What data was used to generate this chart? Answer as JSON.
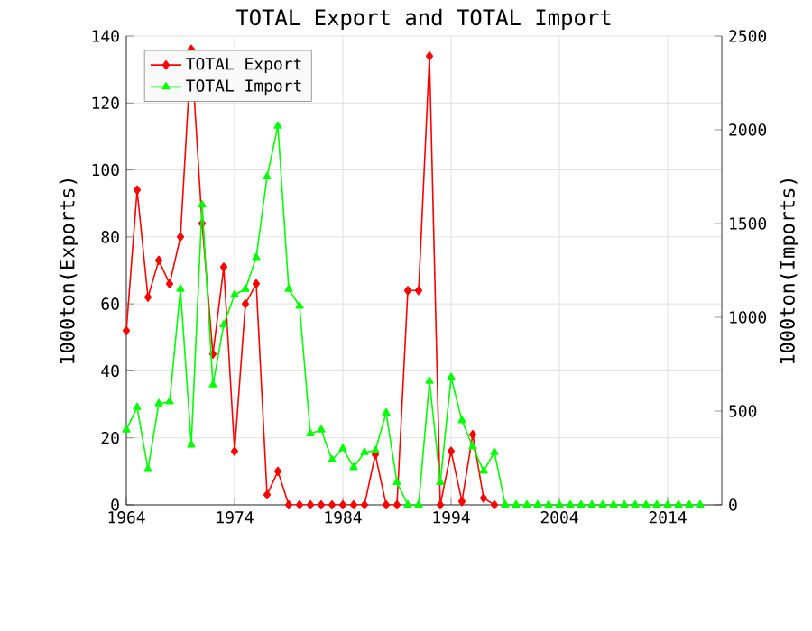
{
  "chart_data": {
    "type": "line",
    "title": "TOTAL Export and TOTAL Import",
    "ylabel": "1000ton(Exports)",
    "y2label": "1000ton(Imports)",
    "x": [
      1964,
      1965,
      1966,
      1967,
      1968,
      1969,
      1970,
      1971,
      1972,
      1973,
      1974,
      1975,
      1976,
      1977,
      1978,
      1979,
      1980,
      1981,
      1982,
      1983,
      1984,
      1985,
      1986,
      1987,
      1988,
      1989,
      1990,
      1991,
      1992,
      1993,
      1994,
      1995,
      1996,
      1997,
      1998,
      1999,
      2000,
      2001,
      2002,
      2003,
      2004,
      2005,
      2006,
      2007,
      2008,
      2009,
      2010,
      2011,
      2012,
      2013,
      2014,
      2015,
      2016,
      2017
    ],
    "series": [
      {
        "name": "TOTAL Export",
        "color": "#ff0000",
        "marker": "diamond",
        "values": [
          52,
          94,
          62,
          73,
          66,
          80,
          136,
          84,
          45,
          71,
          16,
          60,
          66,
          3,
          10,
          0,
          0,
          0,
          0,
          0,
          0,
          0,
          0,
          15,
          0,
          0,
          64,
          64,
          134,
          0,
          16,
          1,
          21,
          2,
          0,
          null,
          null,
          null,
          null,
          null,
          null,
          null,
          null,
          null,
          null,
          null,
          null,
          null,
          null,
          null,
          null,
          null,
          null,
          null
        ]
      },
      {
        "name": "TOTAL Import",
        "color": "#00ff00",
        "marker": "triangle",
        "axis": "y2",
        "values": [
          400,
          520,
          190,
          540,
          550,
          1150,
          320,
          1600,
          640,
          960,
          1120,
          1150,
          1320,
          1750,
          2020,
          1150,
          1060,
          380,
          400,
          240,
          300,
          200,
          280,
          290,
          490,
          120,
          0,
          0,
          660,
          120,
          680,
          450,
          310,
          180,
          280,
          0,
          0,
          0,
          0,
          0,
          0,
          0,
          0,
          0,
          0,
          0,
          0,
          0,
          0,
          0,
          0,
          0,
          0,
          0
        ]
      }
    ],
    "xlim": [
      1964,
      2019
    ],
    "xticks": [
      1964,
      1974,
      1984,
      1994,
      2004,
      2014
    ],
    "ylim": [
      0,
      140
    ],
    "yticks": [
      0,
      20,
      40,
      60,
      80,
      100,
      120,
      140
    ],
    "y2lim": [
      0,
      2500
    ],
    "y2ticks": [
      0,
      500,
      1000,
      1500,
      2000,
      2500
    ],
    "grid": true,
    "legend": "top left"
  }
}
